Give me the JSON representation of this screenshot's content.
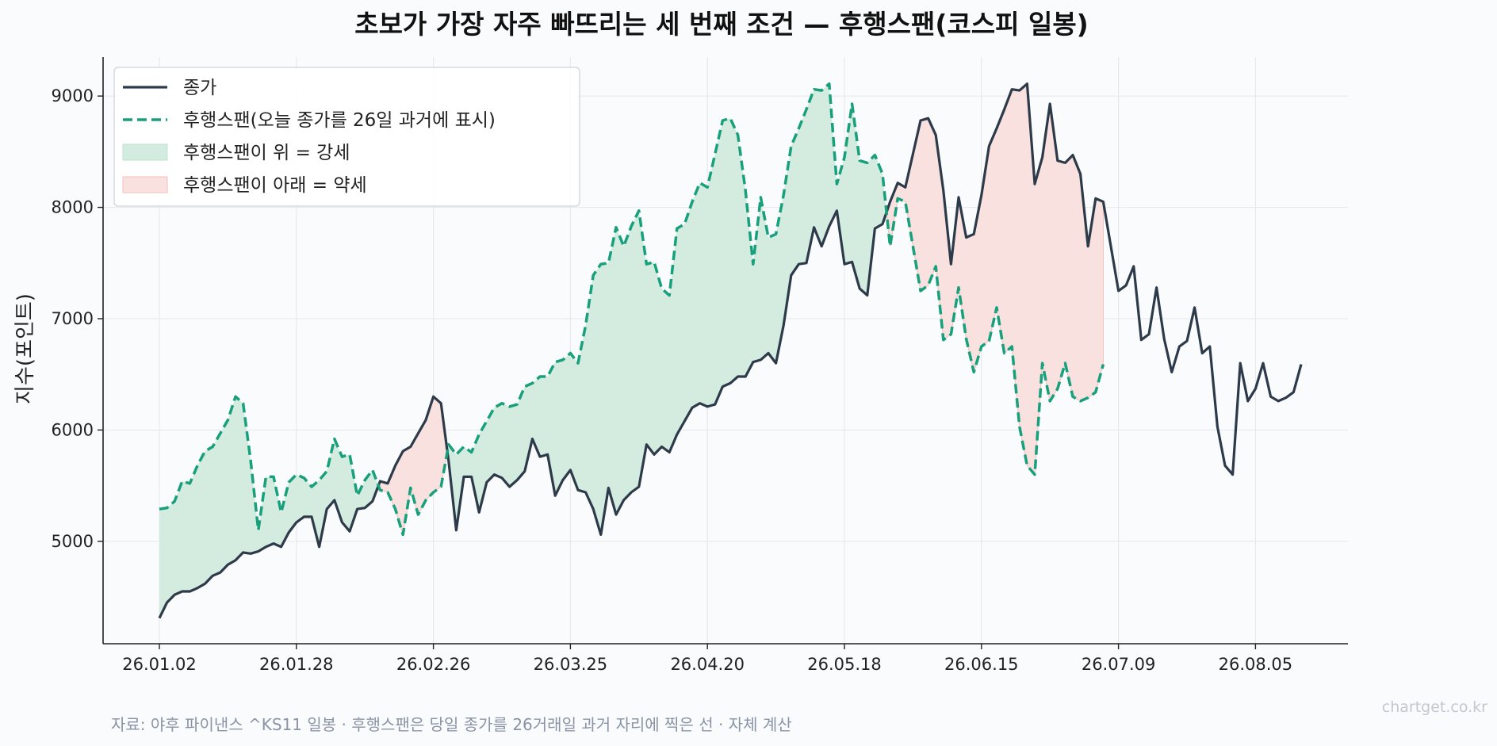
{
  "chart_data": {
    "type": "line",
    "title": "초보가 가장 자주 빠뜨리는 세 번째 조건 — 후행스팬(코스피 일봉)",
    "xlabel": "",
    "ylabel": "지수(포인트)",
    "ylim": [
      4080,
      9350
    ],
    "yticks": [
      5000,
      6000,
      7000,
      8000,
      9000
    ],
    "xtick_labels": [
      "26.01.02",
      "26.01.28",
      "26.02.26",
      "26.03.25",
      "26.04.20",
      "26.05.18",
      "26.06.15",
      "26.07.09",
      "26.08.05"
    ],
    "xtick_index": [
      0,
      18,
      36,
      54,
      72,
      90,
      108,
      126,
      144
    ],
    "x_count": 150,
    "grid": true,
    "legend_position": "top-left",
    "lagging_shift": 26,
    "series": [
      {
        "name": "종가",
        "style": "solid",
        "color": "#2d3a4a",
        "values": [
          4310,
          4450,
          4520,
          4550,
          4550,
          4580,
          4620,
          4690,
          4720,
          4790,
          4830,
          4900,
          4890,
          4910,
          4950,
          4980,
          4950,
          5080,
          5170,
          5220,
          5220,
          4950,
          5290,
          5370,
          5170,
          5090,
          5290,
          5300,
          5360,
          5540,
          5520,
          5680,
          5810,
          5850,
          5970,
          6090,
          6300,
          6240,
          5720,
          5100,
          5580,
          5580,
          5260,
          5530,
          5600,
          5570,
          5490,
          5550,
          5630,
          5920,
          5760,
          5780,
          5410,
          5550,
          5640,
          5460,
          5440,
          5290,
          5060,
          5480,
          5240,
          5370,
          5440,
          5490,
          5870,
          5780,
          5850,
          5800,
          5960,
          6080,
          6200,
          6240,
          6210,
          6230,
          6390,
          6420,
          6480,
          6480,
          6610,
          6630,
          6690,
          6600,
          6940,
          7390,
          7490,
          7500,
          7820,
          7650,
          7830,
          7970,
          7490,
          7510,
          7270,
          7210,
          7810,
          7850,
          8050,
          8220,
          8180,
          8480,
          8780,
          8800,
          8650,
          8150,
          7490,
          8090,
          7730,
          7760,
          8110,
          8550,
          8710,
          8880,
          9060,
          9050,
          9110,
          8210,
          8450,
          8930,
          8420,
          8400,
          8470,
          8300,
          7650,
          8080,
          8050,
          7650,
          7250,
          7300,
          7470,
          6810,
          6860,
          7280,
          6820,
          6520,
          6750,
          6800,
          7100,
          6690,
          6750,
          6030,
          5680,
          5600,
          6600,
          6260,
          6370,
          6600,
          6300,
          6260,
          6290,
          6340,
          6590
        ]
      },
      {
        "name": "후행스팬(오늘 종가를 26일 과거에 표시)",
        "style": "dashed",
        "color": "#18a07c"
      }
    ],
    "fill_labels": {
      "above": "후행스팬이 위 = 강세",
      "below": "후행스팬이 아래 = 약세"
    },
    "colors": {
      "close": "#2d3a4a",
      "lagging": "#18a07c",
      "bull_fill": "#d3ecdf",
      "bear_fill": "#f9e1df",
      "bear_edge": "#f1bfbb",
      "grid": "#e4e7ec",
      "axis": "#222222",
      "background": "#fafbfc"
    }
  },
  "source": "자료: 야후 파이낸스 ^KS11 일봉 · 후행스팬은 당일 종가를 26거래일 과거 자리에 찍은 선 · 자체 계산",
  "watermark": "chartget.co.kr"
}
